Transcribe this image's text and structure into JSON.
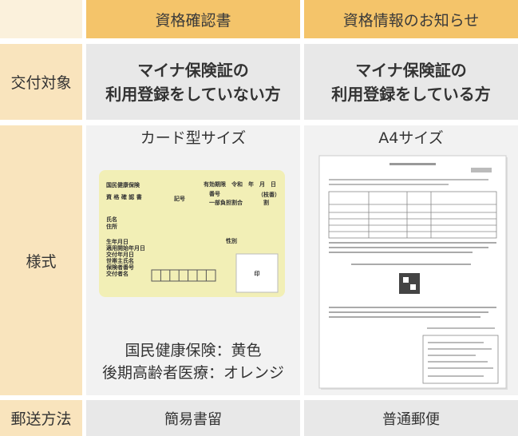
{
  "table": {
    "columns": [
      "資格確認書",
      "資格情報のお知らせ"
    ],
    "rows": [
      {
        "label": "交付対象",
        "cells": [
          {
            "lines": [
              "マイナ保険証の",
              "利用登録をしていない方"
            ]
          },
          {
            "lines": [
              "マイナ保険証の",
              "利用登録をしている方"
            ]
          }
        ]
      },
      {
        "label": "様式",
        "cells": [
          {
            "title": "カード型サイズ",
            "lines": [
              "国民健康保険：黄色",
              "後期高齢者医療：オレンジ"
            ]
          },
          {
            "title": "A4サイズ"
          }
        ]
      },
      {
        "label": "郵送方法",
        "cells": [
          {
            "lines": [
              "簡易書留"
            ]
          },
          {
            "lines": [
              "普通郵便"
            ]
          }
        ]
      }
    ]
  },
  "card": {
    "title": "国民健康保険",
    "subtitle": "資 格 確 認 書",
    "expiry": "有効期限　令和　年　月　日",
    "symbol": "記号",
    "number": "番号",
    "branch": "（枝番）",
    "ratio": "一部負担割合",
    "ratio_unit": "割",
    "fields": [
      "氏名",
      "住所"
    ],
    "dates": [
      "生年月日",
      "適用開始年月日",
      "交付年月日",
      "世帯主氏名",
      "保険者番号",
      "交付者名"
    ],
    "sex": "性別",
    "stamp": "印"
  }
}
